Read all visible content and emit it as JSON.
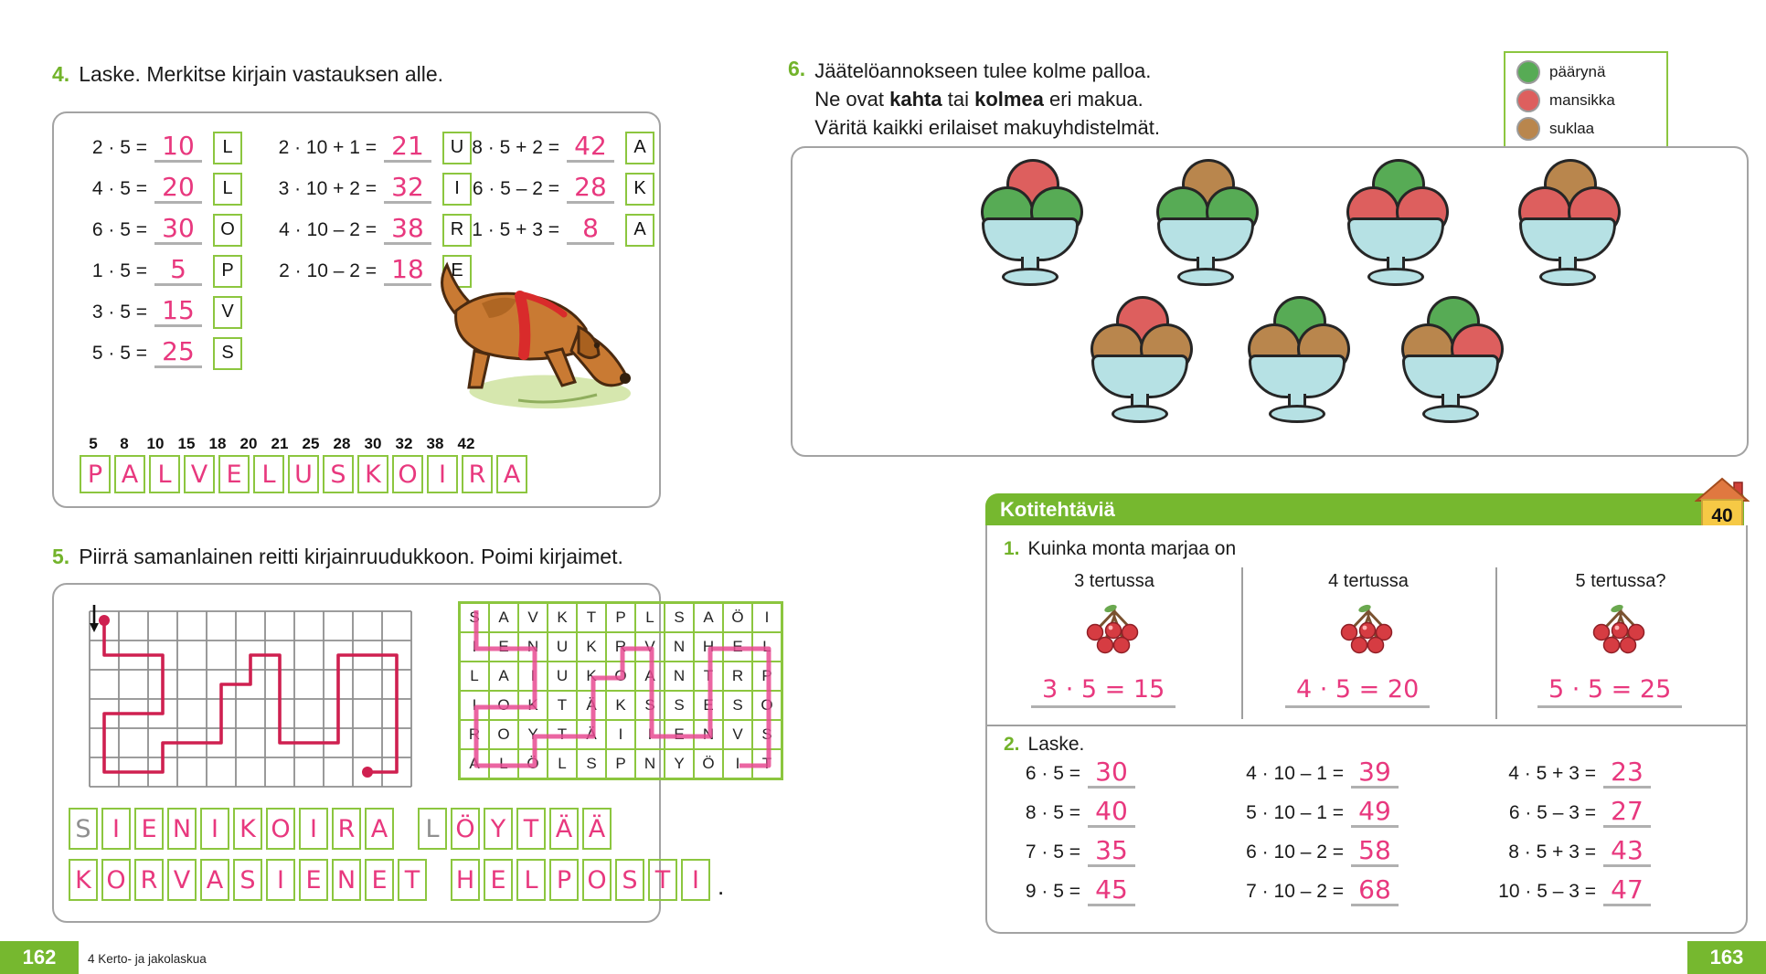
{
  "colors": {
    "accent_green": "#72b32a",
    "box_green": "#8cc63f",
    "handwriting_pink": "#e8387e",
    "path_red": "#cf2050",
    "path_pink": "#e84a92",
    "homework_bar_green": "#76b82f"
  },
  "left": {
    "page_number": "162",
    "footer": "4 Kerto- ja jakolaskua",
    "ex4": {
      "num": "4.",
      "title": "Laske. Merkitse kirjain vastauksen alle.",
      "col1": [
        {
          "expr": "2 · 5 =",
          "ans": "10",
          "letter": "L"
        },
        {
          "expr": "4 · 5 =",
          "ans": "20",
          "letter": "L"
        },
        {
          "expr": "6 · 5 =",
          "ans": "30",
          "letter": "O"
        },
        {
          "expr": "1 · 5 =",
          "ans": "5",
          "letter": "P"
        },
        {
          "expr": "3 · 5 =",
          "ans": "15",
          "letter": "V"
        },
        {
          "expr": "5 · 5 =",
          "ans": "25",
          "letter": "S"
        }
      ],
      "col2": [
        {
          "expr": "2 · 10 + 1 =",
          "ans": "21",
          "letter": "U"
        },
        {
          "expr": "3 · 10 + 2 =",
          "ans": "32",
          "letter": "I"
        },
        {
          "expr": "4 · 10 – 2 =",
          "ans": "38",
          "letter": "R"
        },
        {
          "expr": "2 · 10 – 2 =",
          "ans": "18",
          "letter": "E"
        }
      ],
      "col3": [
        {
          "expr": "8 · 5 + 2 =",
          "ans": "42",
          "letter": "A"
        },
        {
          "expr": "6 · 5 – 2 =",
          "ans": "28",
          "letter": "K"
        },
        {
          "expr": "1 · 5 + 3 =",
          "ans": "8",
          "letter": "A"
        }
      ],
      "number_row": [
        "5",
        "8",
        "10",
        "15",
        "18",
        "20",
        "21",
        "25",
        "28",
        "30",
        "32",
        "38",
        "42"
      ],
      "answer_letters": [
        "P",
        "A",
        "L",
        "V",
        "E",
        "L",
        "U",
        "S",
        "K",
        "O",
        "I",
        "R",
        "A"
      ]
    },
    "ex5": {
      "num": "5.",
      "title": "Piirrä samanlainen reitti kirjainruudukkoon. Poimi kirjaimet.",
      "grid": [
        [
          "S",
          "A",
          "V",
          "K",
          "T",
          "P",
          "L",
          "S",
          "A",
          "Ö",
          "I"
        ],
        [
          "I",
          "E",
          "N",
          "U",
          "K",
          "R",
          "V",
          "N",
          "H",
          "E",
          "L"
        ],
        [
          "L",
          "A",
          "I",
          "U",
          "K",
          "O",
          "A",
          "N",
          "T",
          "R",
          "P"
        ],
        [
          "I",
          "O",
          "K",
          "T",
          "Ä",
          "K",
          "S",
          "S",
          "E",
          "S",
          "O"
        ],
        [
          "R",
          "O",
          "Y",
          "T",
          "Ä",
          "I",
          "I",
          "E",
          "N",
          "V",
          "S"
        ],
        [
          "A",
          "L",
          "Ö",
          "L",
          "S",
          "P",
          "N",
          "Y",
          "Ö",
          "I",
          "T"
        ]
      ],
      "answer1a": [
        "S",
        "I",
        "E",
        "N",
        "I",
        "K",
        "O",
        "I",
        "R",
        "A"
      ],
      "answer1b": [
        "L",
        "Ö",
        "Y",
        "T",
        "Ä",
        "Ä"
      ],
      "answer2a": [
        "K",
        "O",
        "R",
        "V",
        "A",
        "S",
        "I",
        "E",
        "N",
        "E",
        "T"
      ],
      "answer2b": [
        "H",
        "E",
        "L",
        "P",
        "O",
        "S",
        "T",
        "I"
      ],
      "period": "."
    }
  },
  "right": {
    "page_number": "163",
    "ex6": {
      "num": "6.",
      "line1": "Jäätelöannokseen tulee kolme palloa.",
      "line2_pre": "Ne ovat ",
      "line2_bold1": "kahta",
      "line2_mid": " tai ",
      "line2_bold2": "kolmea",
      "line2_post": " eri makua.",
      "line3": "Väritä kaikki erilaiset makuyhdistelmät.",
      "legend": [
        {
          "flavor": "green",
          "label": "päärynä"
        },
        {
          "flavor": "red",
          "label": "mansikka"
        },
        {
          "flavor": "brown",
          "label": "suklaa"
        }
      ],
      "flavor_colors": {
        "green": "#57ab55",
        "red": "#dd5f5e",
        "brown": "#b9864d"
      },
      "bowls": [
        [
          "green",
          "green",
          "red"
        ],
        [
          "green",
          "green",
          "brown"
        ],
        [
          "red",
          "red",
          "green"
        ],
        [
          "red",
          "red",
          "brown"
        ],
        [
          "brown",
          "brown",
          "red"
        ],
        [
          "brown",
          "brown",
          "green"
        ],
        [
          "brown",
          "red",
          "green"
        ]
      ]
    },
    "homework": {
      "header": "Kotitehtäviä",
      "badge": "40",
      "ex1": {
        "num": "1.",
        "title": "Kuinka monta marjaa on",
        "cols": [
          {
            "label": "3 tertussa",
            "answer": "3 · 5 = 15"
          },
          {
            "label": "4 tertussa",
            "answer": "4 · 5 = 20"
          },
          {
            "label": "5 tertussa?",
            "answer": "5 · 5 = 25"
          }
        ]
      },
      "ex2": {
        "num": "2.",
        "title": "Laske.",
        "col1": [
          {
            "expr": "6 · 5 =",
            "ans": "30"
          },
          {
            "expr": "8 · 5 =",
            "ans": "40"
          },
          {
            "expr": "7 · 5 =",
            "ans": "35"
          },
          {
            "expr": "9 · 5 =",
            "ans": "45"
          }
        ],
        "col2": [
          {
            "expr": "4 · 10 – 1 =",
            "ans": "39"
          },
          {
            "expr": "5 · 10 – 1 =",
            "ans": "49"
          },
          {
            "expr": "6 · 10 – 2 =",
            "ans": "58"
          },
          {
            "expr": "7 · 10 – 2 =",
            "ans": "68"
          }
        ],
        "col3": [
          {
            "expr": "4 · 5 + 3 =",
            "ans": "23"
          },
          {
            "expr": "6 · 5 – 3 =",
            "ans": "27"
          },
          {
            "expr": "8 · 5 + 3 =",
            "ans": "43"
          },
          {
            "expr": "10 · 5 – 3 =",
            "ans": "47"
          }
        ]
      }
    }
  }
}
